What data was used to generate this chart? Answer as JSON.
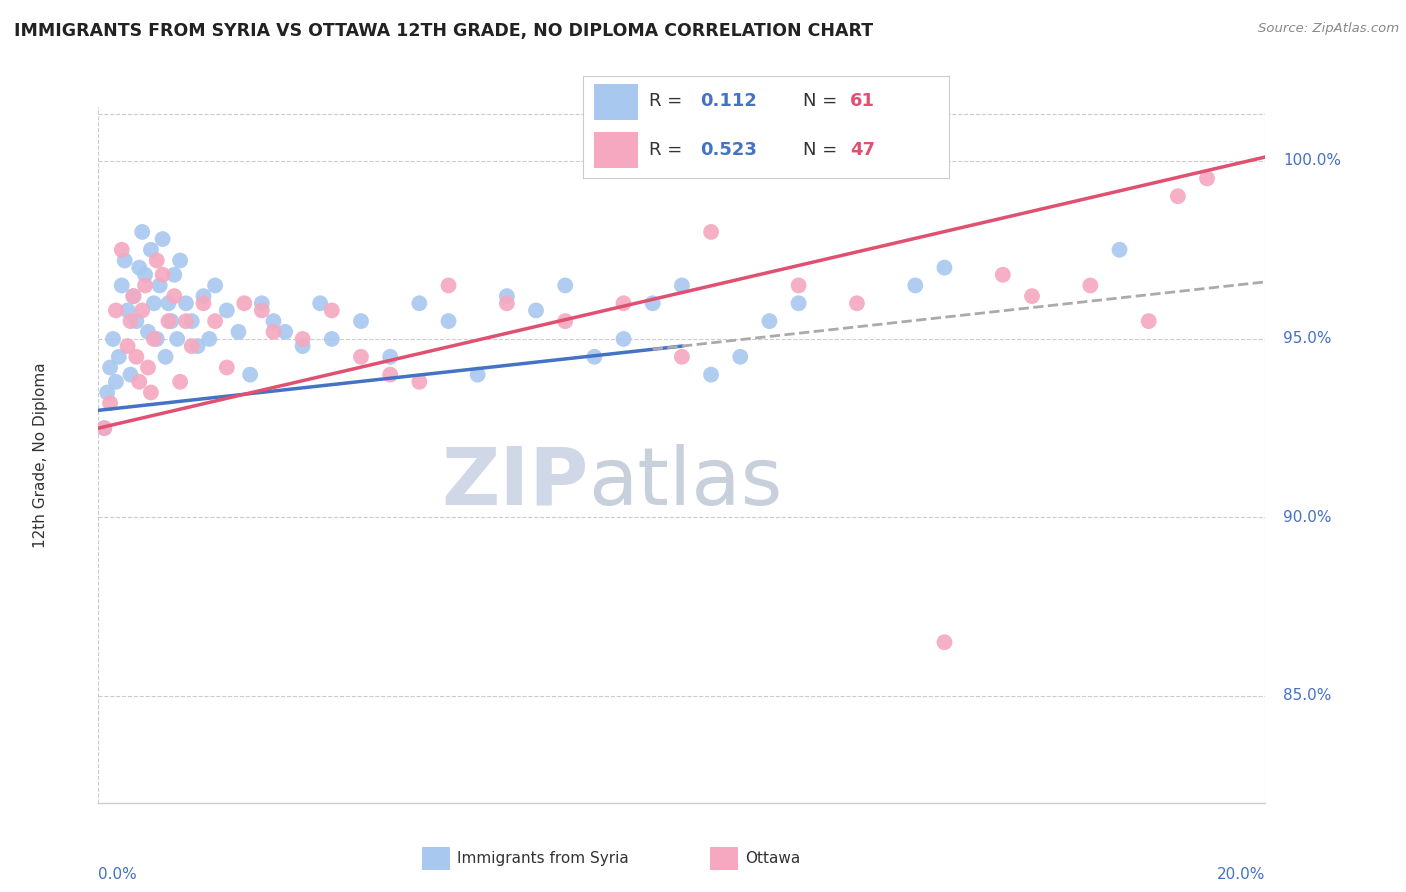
{
  "title": "IMMIGRANTS FROM SYRIA VS OTTAWA 12TH GRADE, NO DIPLOMA CORRELATION CHART",
  "source_text": "Source: ZipAtlas.com",
  "xmin": 0.0,
  "xmax": 20.0,
  "ymin": 82.0,
  "ymax": 101.5,
  "ylabel_ticks": [
    85.0,
    90.0,
    95.0,
    100.0
  ],
  "ylabel_labels": [
    "85.0%",
    "90.0%",
    "95.0%",
    "100.0%"
  ],
  "blue_color": "#a8c8f0",
  "pink_color": "#f5a8c0",
  "blue_line_color": "#4472c4",
  "pink_line_color": "#e05070",
  "dashed_line_color": "#aaaaaa",
  "blue_line_x_end_solid": 10.0,
  "blue_line_slope": 0.18,
  "blue_line_intercept": 93.0,
  "pink_line_slope": 0.38,
  "pink_line_intercept": 92.5,
  "blue_dots_x": [
    0.1,
    0.15,
    0.2,
    0.25,
    0.3,
    0.35,
    0.4,
    0.45,
    0.5,
    0.55,
    0.6,
    0.65,
    0.7,
    0.75,
    0.8,
    0.85,
    0.9,
    0.95,
    1.0,
    1.05,
    1.1,
    1.15,
    1.2,
    1.25,
    1.3,
    1.35,
    1.4,
    1.5,
    1.6,
    1.7,
    1.8,
    1.9,
    2.0,
    2.2,
    2.4,
    2.6,
    2.8,
    3.0,
    3.2,
    3.5,
    3.8,
    4.0,
    4.5,
    5.0,
    5.5,
    6.0,
    6.5,
    7.0,
    7.5,
    8.0,
    8.5,
    9.0,
    9.5,
    10.0,
    10.5,
    11.0,
    11.5,
    12.0,
    14.0,
    14.5,
    17.5
  ],
  "blue_dots_y": [
    92.5,
    93.5,
    94.2,
    95.0,
    93.8,
    94.5,
    96.5,
    97.2,
    95.8,
    94.0,
    96.2,
    95.5,
    97.0,
    98.0,
    96.8,
    95.2,
    97.5,
    96.0,
    95.0,
    96.5,
    97.8,
    94.5,
    96.0,
    95.5,
    96.8,
    95.0,
    97.2,
    96.0,
    95.5,
    94.8,
    96.2,
    95.0,
    96.5,
    95.8,
    95.2,
    94.0,
    96.0,
    95.5,
    95.2,
    94.8,
    96.0,
    95.0,
    95.5,
    94.5,
    96.0,
    95.5,
    94.0,
    96.2,
    95.8,
    96.5,
    94.5,
    95.0,
    96.0,
    96.5,
    94.0,
    94.5,
    95.5,
    96.0,
    96.5,
    97.0,
    97.5
  ],
  "pink_dots_x": [
    0.1,
    0.2,
    0.3,
    0.4,
    0.5,
    0.55,
    0.6,
    0.65,
    0.7,
    0.75,
    0.8,
    0.85,
    0.9,
    0.95,
    1.0,
    1.1,
    1.2,
    1.3,
    1.4,
    1.5,
    1.6,
    1.8,
    2.0,
    2.2,
    2.5,
    2.8,
    3.0,
    3.5,
    4.0,
    4.5,
    5.0,
    5.5,
    6.0,
    7.0,
    8.0,
    9.0,
    10.0,
    10.5,
    12.0,
    13.0,
    14.5,
    15.5,
    16.0,
    17.0,
    18.0,
    18.5,
    19.0
  ],
  "pink_dots_y": [
    92.5,
    93.2,
    95.8,
    97.5,
    94.8,
    95.5,
    96.2,
    94.5,
    93.8,
    95.8,
    96.5,
    94.2,
    93.5,
    95.0,
    97.2,
    96.8,
    95.5,
    96.2,
    93.8,
    95.5,
    94.8,
    96.0,
    95.5,
    94.2,
    96.0,
    95.8,
    95.2,
    95.0,
    95.8,
    94.5,
    94.0,
    93.8,
    96.5,
    96.0,
    95.5,
    96.0,
    94.5,
    98.0,
    96.5,
    96.0,
    86.5,
    96.8,
    96.2,
    96.5,
    95.5,
    99.0,
    99.5
  ]
}
